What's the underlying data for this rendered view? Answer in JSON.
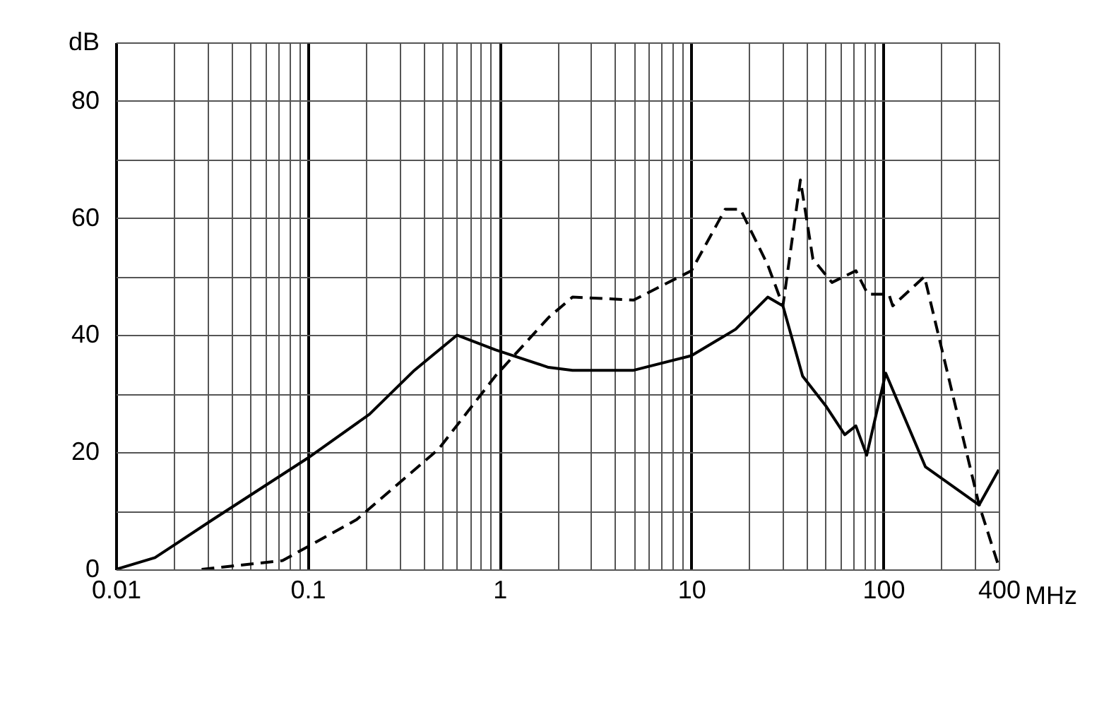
{
  "chart_data": {
    "type": "line",
    "xlabel": "MHz",
    "log": "x",
    "grid": true,
    "marker": "none",
    "xlim": [
      0.01,
      400
    ],
    "ylim": [
      0,
      90
    ],
    "xticks": [
      0.01,
      {
        "value": 0.02,
        "label": null
      },
      {
        "value": 0.03,
        "label": null
      },
      {
        "value": 0.04,
        "label": null
      },
      {
        "value": 0.05,
        "label": null
      },
      {
        "value": 0.06,
        "label": null
      },
      {
        "value": 0.07,
        "label": null
      },
      {
        "value": 0.08,
        "label": null
      },
      {
        "value": 0.09,
        "label": null
      },
      0.1,
      {
        "value": 0.2,
        "label": null
      },
      {
        "value": 0.3,
        "label": null
      },
      {
        "value": 0.4,
        "label": null
      },
      {
        "value": 0.5,
        "label": null
      },
      {
        "value": 0.6,
        "label": null
      },
      {
        "value": 0.7,
        "label": null
      },
      {
        "value": 0.8,
        "label": null
      },
      {
        "value": 0.9,
        "label": null
      },
      1,
      {
        "value": 2,
        "label": null
      },
      {
        "value": 3,
        "label": null
      },
      {
        "value": 4,
        "label": null
      },
      {
        "value": 5,
        "label": null
      },
      {
        "value": 6,
        "label": null
      },
      {
        "value": 7,
        "label": null
      },
      {
        "value": 8,
        "label": null
      },
      {
        "value": 9,
        "label": null
      },
      10,
      {
        "value": 20,
        "label": null
      },
      {
        "value": 30,
        "label": null
      },
      {
        "value": 40,
        "label": null
      },
      {
        "value": 50,
        "label": null
      },
      {
        "value": 60,
        "label": null
      },
      {
        "value": 70,
        "label": null
      },
      {
        "value": 80,
        "label": null
      },
      {
        "value": 90,
        "label": null
      },
      100,
      {
        "value": 200,
        "label": null
      },
      {
        "value": 300,
        "label": null
      },
      400
    ],
    "yticks": [
      0,
      {
        "value": 10,
        "label": null
      },
      20,
      {
        "value": 30,
        "label": null
      },
      40,
      {
        "value": 50,
        "label": null
      },
      60,
      {
        "value": 70,
        "label": null
      },
      80,
      {
        "value": 90,
        "label": "dB"
      }
    ],
    "series": [
      {
        "color": "#000000",
        "line_style": "solid",
        "x": [
          0.01,
          0.016,
          0.032,
          0.1,
          0.21,
          0.36,
          0.6,
          0.95,
          1.8,
          2.4,
          5,
          10,
          17,
          25,
          30,
          38,
          50,
          63,
          72,
          82,
          103,
          166,
          316,
          400
        ],
        "values": [
          0,
          2,
          8.5,
          19,
          26.5,
          34,
          40,
          37.5,
          34.5,
          34,
          34,
          36.5,
          41,
          46.5,
          45,
          33,
          28,
          23,
          24.5,
          19.5,
          33.5,
          17.5,
          11,
          17
        ]
      },
      {
        "color": "#000000",
        "line_style": "dashed",
        "x": [
          0.028,
          0.074,
          0.18,
          0.48,
          0.95,
          1.8,
          2.4,
          5,
          10,
          15,
          18,
          25,
          30,
          37,
          43,
          54,
          72,
          83,
          107,
          112,
          164,
          316,
          400
        ],
        "values": [
          0,
          1.5,
          8.5,
          20.5,
          33,
          43,
          46.5,
          46,
          51,
          61.5,
          61.5,
          52,
          45,
          66.5,
          53,
          49,
          51,
          47,
          47,
          45,
          50,
          11,
          0.5
        ]
      }
    ]
  }
}
